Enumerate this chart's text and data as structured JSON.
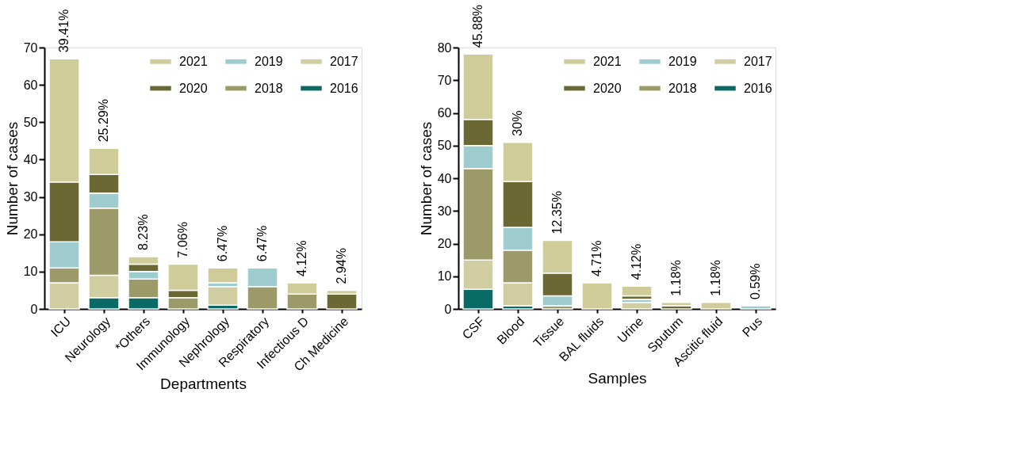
{
  "chart_data": [
    {
      "type": "bar",
      "stacked": true,
      "xlabel": "Departments",
      "ylabel": "Number of cases",
      "categories": [
        "ICU",
        "Neurology",
        "*Others",
        "Immunology",
        "Nephrology",
        "Respiratory",
        "Infectious D",
        "Ch Medicine"
      ],
      "series": [
        {
          "name": "2016",
          "color": "#0a6a66",
          "values": [
            null,
            3,
            3,
            null,
            1,
            null,
            null,
            null
          ]
        },
        {
          "name": "2017",
          "color": "#d0cea0",
          "values": [
            7,
            6,
            null,
            null,
            5,
            null,
            null,
            null
          ]
        },
        {
          "name": "2018",
          "color": "#9b9a68",
          "values": [
            4,
            18,
            5,
            3,
            null,
            6,
            4,
            null
          ]
        },
        {
          "name": "2019",
          "color": "#9ecccf",
          "values": [
            7,
            4,
            2,
            null,
            1,
            5,
            null,
            null
          ]
        },
        {
          "name": "2020",
          "color": "#6b6833",
          "values": [
            16,
            5,
            2,
            2,
            null,
            null,
            null,
            4
          ]
        },
        {
          "name": "2021",
          "color": "#cfcc9a",
          "values": [
            33,
            7,
            2,
            7,
            4,
            null,
            3,
            1
          ]
        }
      ],
      "annotations": [
        {
          "text": "39.41%",
          "x": "ICU",
          "y": 67
        },
        {
          "text": "25.29%",
          "x": "Neurology",
          "y": 43
        },
        {
          "text": "8.23%",
          "x": "*Others",
          "y": 14
        },
        {
          "text": "7.06%",
          "x": "Immunology",
          "y": 12
        },
        {
          "text": "6.47%",
          "x": "Nephrology",
          "y": 11
        },
        {
          "text": "6.47%",
          "x": "Respiratory",
          "y": 11
        },
        {
          "text": "4.12%",
          "x": "Infectious D",
          "y": 7
        },
        {
          "text": "2.94%",
          "x": "Ch Medicine",
          "y": 5
        }
      ],
      "ylim": [
        0,
        70
      ],
      "yticks": [
        0,
        10,
        20,
        30,
        40,
        50,
        60,
        70
      ],
      "grid": false,
      "legend": "top right"
    },
    {
      "type": "bar",
      "stacked": true,
      "xlabel": "Samples",
      "ylabel": "Number of cases",
      "categories": [
        "CSF",
        "Blood",
        "Tissue",
        "BAL fluids",
        "Urine",
        "Sputum",
        "Ascitic fluid",
        "Pus"
      ],
      "series": [
        {
          "name": "2016",
          "color": "#0a6a66",
          "values": [
            6,
            1,
            null,
            null,
            null,
            null,
            null,
            null
          ]
        },
        {
          "name": "2017",
          "color": "#d0cea0",
          "values": [
            9,
            7,
            null,
            null,
            2,
            null,
            null,
            null
          ]
        },
        {
          "name": "2018",
          "color": "#9b9a68",
          "values": [
            28,
            10,
            1,
            null,
            null,
            null,
            null,
            null
          ]
        },
        {
          "name": "2019",
          "color": "#9ecccf",
          "values": [
            7,
            7,
            3,
            null,
            1,
            null,
            null,
            1
          ]
        },
        {
          "name": "2020",
          "color": "#6b6833",
          "values": [
            8,
            14,
            7,
            null,
            1,
            1,
            null,
            null
          ]
        },
        {
          "name": "2021",
          "color": "#cfcc9a",
          "values": [
            20,
            12,
            10,
            8,
            3,
            1,
            2,
            null
          ]
        }
      ],
      "annotations": [
        {
          "text": "45.88%",
          "x": "CSF",
          "y": 78
        },
        {
          "text": "30%",
          "x": "Blood",
          "y": 51
        },
        {
          "text": "12.35%",
          "x": "Tissue",
          "y": 21
        },
        {
          "text": "4.71%",
          "x": "BAL fluids",
          "y": 8
        },
        {
          "text": "4.12%",
          "x": "Urine",
          "y": 7
        },
        {
          "text": "1.18%",
          "x": "Sputum",
          "y": 2
        },
        {
          "text": "1.18%",
          "x": "Ascitic fluid",
          "y": 2
        },
        {
          "text": "0.59%",
          "x": "Pus",
          "y": 1
        }
      ],
      "ylim": [
        0,
        80
      ],
      "yticks": [
        0,
        10,
        20,
        30,
        40,
        50,
        60,
        70,
        80
      ],
      "grid": false,
      "legend": "top right"
    }
  ]
}
